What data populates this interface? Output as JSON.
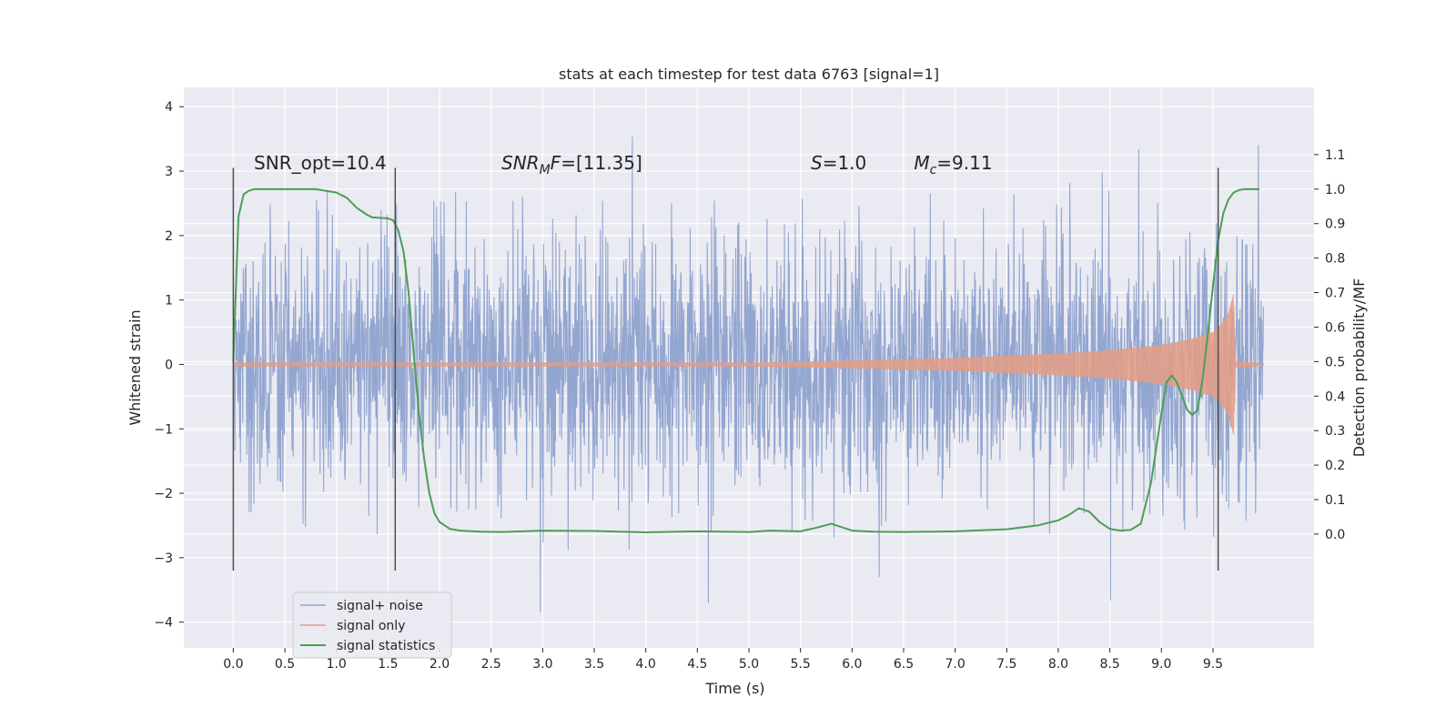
{
  "chart_data": {
    "type": "line",
    "title": "stats at each timestep for test data 6763 [signal=1]",
    "xlabel": "Time (s)",
    "ylabel": "Whitened strain",
    "y2label": "Detection probability/MF",
    "xlim": [
      -0.48,
      10.48
    ],
    "ylim": [
      -4.4,
      4.3
    ],
    "y2lim": [
      -0.33,
      1.295
    ],
    "grid": true,
    "legend_position": "lower-left",
    "xticks": [
      0.0,
      0.5,
      1.0,
      1.5,
      2.0,
      2.5,
      3.0,
      3.5,
      4.0,
      4.5,
      5.0,
      5.5,
      6.0,
      6.5,
      7.0,
      7.5,
      8.0,
      8.5,
      9.0,
      9.5
    ],
    "xtick_labels": [
      "0.0",
      "0.5",
      "1.0",
      "1.5",
      "2.0",
      "2.5",
      "3.0",
      "3.5",
      "4.0",
      "4.5",
      "5.0",
      "5.5",
      "6.0",
      "6.5",
      "7.0",
      "7.5",
      "8.0",
      "8.5",
      "9.0",
      "9.5"
    ],
    "yticks": [
      4,
      3,
      2,
      1,
      0,
      -1,
      -2,
      -3,
      -4
    ],
    "ytick_labels": [
      "4",
      "3",
      "2",
      "1",
      "0",
      "−1",
      "−2",
      "−3",
      "−4"
    ],
    "y2ticks": [
      1.1,
      1.0,
      0.9,
      0.8,
      0.7,
      0.6,
      0.5,
      0.4,
      0.3,
      0.2,
      0.1,
      0.0
    ],
    "y2tick_labels": [
      "1.1",
      "1.0",
      "0.9",
      "0.8",
      "0.7",
      "0.6",
      "0.5",
      "0.4",
      "0.3",
      "0.2",
      "0.1",
      "0.0"
    ],
    "annotations": [
      {
        "name": "snr-opt-annotation",
        "html": "SNR_opt=10.4",
        "x": 0.2
      },
      {
        "name": "snr-mf-annotation",
        "html": "<tspan font-style=\"italic\">SNR</tspan><tspan font-style=\"italic\" font-size=\"14\" dy=\"5\">M</tspan><tspan font-style=\"italic\" dy=\"-5\">F</tspan>=[11.35]",
        "x": 2.6
      },
      {
        "name": "s-annotation",
        "html": "<tspan font-style=\"italic\">S</tspan>=1.0",
        "x": 5.6
      },
      {
        "name": "mc-annotation",
        "html": "<tspan font-style=\"italic\">M</tspan><tspan font-style=\"italic\" font-size=\"14\" dy=\"5\">c</tspan><tspan dy=\"-5\">=9.11</tspan>",
        "x": 6.6
      }
    ],
    "annotation_y": 3.0,
    "vlines": [
      0.0,
      1.57,
      9.55
    ],
    "vline_range": [
      -3.2,
      3.05
    ],
    "series": [
      {
        "name": "signal+ noise",
        "color": "#8ea2cd",
        "kind": "noise",
        "t_start": 0.0,
        "t_end": 9.99,
        "sigma": 1.0,
        "max_abs": 3.9
      },
      {
        "name": "signal only",
        "color": "#e49c84",
        "kind": "chirp",
        "envelope": {
          "t": [
            0.0,
            5.0,
            6.0,
            7.0,
            8.0,
            8.5,
            9.0,
            9.3,
            9.5,
            9.6,
            9.65,
            9.7,
            9.72,
            9.99
          ],
          "amp": [
            0.03,
            0.03,
            0.06,
            0.1,
            0.17,
            0.22,
            0.3,
            0.4,
            0.5,
            0.65,
            0.8,
            1.1,
            0.05,
            0.02
          ]
        }
      },
      {
        "name": "signal statistics",
        "color": "#4c9e57",
        "kind": "line",
        "axis": "right",
        "x": [
          0.0,
          0.05,
          0.1,
          0.15,
          0.2,
          0.3,
          0.5,
          0.8,
          1.0,
          1.1,
          1.2,
          1.3,
          1.35,
          1.4,
          1.5,
          1.55,
          1.6,
          1.65,
          1.7,
          1.75,
          1.8,
          1.85,
          1.9,
          1.95,
          2.0,
          2.05,
          2.1,
          2.2,
          2.4,
          2.6,
          3.0,
          3.5,
          4.0,
          4.5,
          5.0,
          5.2,
          5.5,
          5.65,
          5.8,
          5.9,
          6.0,
          6.2,
          6.5,
          7.0,
          7.5,
          7.8,
          8.0,
          8.1,
          8.2,
          8.3,
          8.4,
          8.5,
          8.6,
          8.7,
          8.8,
          8.9,
          9.0,
          9.05,
          9.1,
          9.15,
          9.2,
          9.25,
          9.3,
          9.35,
          9.4,
          9.45,
          9.5,
          9.55,
          9.6,
          9.65,
          9.7,
          9.75,
          9.8,
          9.85,
          9.9,
          9.95
        ],
        "y": [
          0.5,
          0.92,
          0.985,
          0.995,
          1.0,
          1.0,
          1.0,
          1.0,
          0.99,
          0.975,
          0.945,
          0.925,
          0.918,
          0.917,
          0.915,
          0.91,
          0.88,
          0.82,
          0.7,
          0.52,
          0.35,
          0.22,
          0.12,
          0.06,
          0.035,
          0.025,
          0.015,
          0.01,
          0.007,
          0.006,
          0.01,
          0.009,
          0.005,
          0.008,
          0.006,
          0.01,
          0.008,
          0.018,
          0.03,
          0.02,
          0.01,
          0.007,
          0.006,
          0.008,
          0.014,
          0.025,
          0.04,
          0.055,
          0.075,
          0.065,
          0.035,
          0.015,
          0.01,
          0.012,
          0.03,
          0.15,
          0.35,
          0.44,
          0.46,
          0.44,
          0.4,
          0.36,
          0.345,
          0.36,
          0.45,
          0.58,
          0.72,
          0.85,
          0.93,
          0.97,
          0.99,
          0.997,
          1.0,
          1.0,
          1.0,
          1.0
        ]
      }
    ]
  }
}
